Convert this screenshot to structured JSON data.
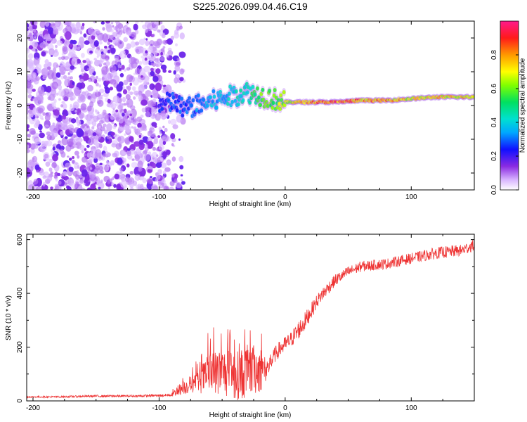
{
  "chart_data": [
    {
      "type": "heatmap",
      "title": "S225.2026.099.04.46.C19",
      "xlabel": "Height of straight line (km)",
      "ylabel": "Frequency (Hz)",
      "xlim": [
        -205,
        150
      ],
      "ylim": [
        -25,
        25
      ],
      "x_ticks": [
        -200,
        -100,
        0,
        100
      ],
      "y_ticks": [
        -20,
        -10,
        0,
        10,
        20
      ],
      "ridge": {
        "x": [
          -100,
          -90,
          -80,
          -70,
          -60,
          -50,
          -40,
          -30,
          -20,
          -10,
          0,
          10,
          20,
          40,
          60,
          80,
          100,
          120,
          150
        ],
        "freq": [
          0,
          1,
          -1,
          0,
          1,
          2,
          3,
          4,
          3,
          2,
          1,
          1,
          1,
          1,
          1.5,
          1.5,
          2,
          2.5,
          2.5
        ],
        "amplitude": [
          0.25,
          0.3,
          0.3,
          0.35,
          0.4,
          0.4,
          0.45,
          0.5,
          0.6,
          0.65,
          0.7,
          0.8,
          0.9,
          0.95,
          0.85,
          0.85,
          0.75,
          0.8,
          0.8
        ]
      },
      "noise_region_x": [
        -205,
        -95
      ],
      "colorbar": {
        "label": "Normalized spectral amplitude",
        "range": [
          0,
          1
        ],
        "ticks": [
          0.0,
          0.2,
          0.4,
          0.6,
          0.8
        ],
        "tick_labels": [
          "0.0",
          "0.2",
          "0.4",
          "0.6",
          "0.8"
        ]
      }
    },
    {
      "type": "line",
      "xlabel": "Height of straight line (km)",
      "ylabel": "SNR (10 * v/v)",
      "xlim": [
        -205,
        150
      ],
      "ylim": [
        0,
        620
      ],
      "x_ticks": [
        -200,
        -100,
        0,
        100
      ],
      "y_ticks": [
        0,
        200,
        400,
        600
      ],
      "series": [
        {
          "name": "SNR",
          "color": "#ee3333",
          "x": [
            -205,
            -180,
            -150,
            -120,
            -100,
            -90,
            -85,
            -80,
            -70,
            -60,
            -50,
            -40,
            -30,
            -20,
            -15,
            -10,
            -5,
            0,
            5,
            10,
            15,
            20,
            25,
            30,
            40,
            50,
            60,
            80,
            100,
            120,
            140,
            150
          ],
          "y": [
            15,
            15,
            18,
            18,
            20,
            22,
            40,
            50,
            70,
            100,
            110,
            90,
            110,
            120,
            110,
            160,
            190,
            210,
            230,
            260,
            290,
            330,
            370,
            400,
            450,
            480,
            500,
            510,
            530,
            550,
            560,
            580
          ],
          "noise": [
            3,
            3,
            4,
            4,
            5,
            6,
            20,
            25,
            40,
            80,
            90,
            90,
            100,
            90,
            50,
            30,
            30,
            30,
            30,
            35,
            35,
            30,
            25,
            25,
            22,
            20,
            20,
            20,
            20,
            22,
            22,
            22
          ]
        }
      ]
    }
  ]
}
